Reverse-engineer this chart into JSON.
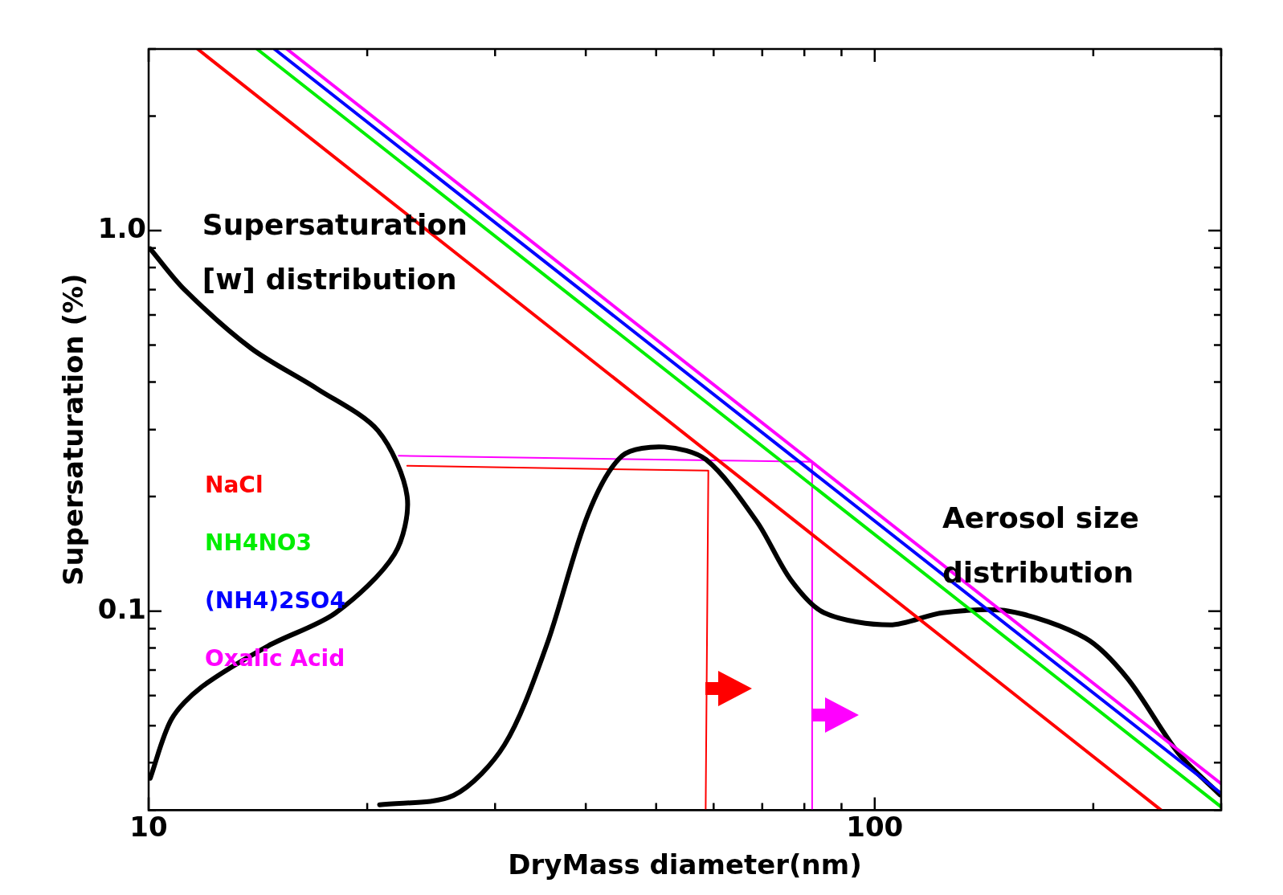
{
  "chart_data": {
    "type": "line",
    "xlabel": "DryMass diameter(nm)",
    "ylabel": "Supersaturation (%)",
    "log": "xy",
    "grid": false,
    "legend": "left",
    "marker": "none",
    "line_style": "solid",
    "xlim": [
      10,
      300
    ],
    "ylim": [
      0.03,
      3
    ],
    "xticks": [
      10,
      {
        "value": 20,
        "label": null
      },
      {
        "value": 30,
        "label": null
      },
      {
        "value": 40,
        "label": null
      },
      {
        "value": 50,
        "label": null
      },
      {
        "value": 60,
        "label": null
      },
      {
        "value": 70,
        "label": null
      },
      {
        "value": 80,
        "label": null
      },
      {
        "value": 90,
        "label": null
      },
      100,
      {
        "value": 200,
        "label": null
      },
      {
        "value": 300,
        "label": null
      }
    ],
    "yticks": [
      {
        "value": 0.03,
        "label": null
      },
      {
        "value": 0.04,
        "label": null
      },
      {
        "value": 0.05,
        "label": null
      },
      {
        "value": 0.06,
        "label": null
      },
      {
        "value": 0.07,
        "label": null
      },
      {
        "value": 0.08,
        "label": null
      },
      {
        "value": 0.09,
        "label": null
      },
      0.1,
      {
        "value": 0.2,
        "label": null
      },
      {
        "value": 0.3,
        "label": null
      },
      {
        "value": 0.4,
        "label": null
      },
      {
        "value": 0.5,
        "label": null
      },
      {
        "value": 0.6,
        "label": null
      },
      {
        "value": 0.7,
        "label": null
      },
      {
        "value": 0.8,
        "label": null
      },
      {
        "value": 0.9,
        "label": null
      },
      {
        "value": 1,
        "label": "1.0"
      },
      {
        "value": 2,
        "label": null
      },
      {
        "value": 3,
        "label": null
      }
    ],
    "annotations": [
      "Supersaturation [w] distribution",
      "Aerosol size distribution"
    ],
    "series": [
      {
        "name": "NaCl",
        "color": "#ff0000",
        "x": [
          11.68,
          248
        ],
        "values": [
          3,
          0.03
        ]
      },
      {
        "name": "NH4NO3",
        "color": "#00ee00",
        "x": [
          14.1,
          300
        ],
        "values": [
          3,
          0.0306
        ]
      },
      {
        "name": "(NH4)2SO4",
        "color": "#0000ff",
        "x": [
          14.9,
          300
        ],
        "values": [
          3,
          0.0332
        ]
      },
      {
        "name": "Oxalic Acid",
        "color": "#ff00ff",
        "x": [
          15.5,
          300
        ],
        "values": [
          3,
          0.0352
        ]
      },
      {
        "color": "#000000",
        "x": [
          10.05,
          11.2,
          13.85,
          17.1,
          20.7,
          22.7,
          21.8,
          18.1,
          14.6,
          11.8,
          10.75,
          10.05
        ],
        "values": [
          0.896,
          0.7,
          0.49,
          0.383,
          0.298,
          0.2,
          0.141,
          0.099,
          0.081,
          0.063,
          0.052,
          0.0364
        ]
      },
      {
        "color": "#000000",
        "x": [
          20.8,
          26.3,
          30.9,
          35.3,
          40.3,
          44.9,
          51.3,
          58.6,
          68.8,
          76.6,
          85.2,
          105,
          124,
          153,
          195,
          223,
          262,
          299
        ],
        "values": [
          0.031,
          0.0328,
          0.0445,
          0.081,
          0.18,
          0.256,
          0.27,
          0.25,
          0.172,
          0.121,
          0.099,
          0.092,
          0.099,
          0.1,
          0.085,
          0.0665,
          0.0423,
          0.0329
        ]
      },
      {
        "color": "#ff0000",
        "x": [
          22.7,
          59,
          58.5
        ],
        "values": [
          0.241,
          0.234,
          0.03
        ]
      },
      {
        "color": "#ff00ff",
        "x": [
          22.1,
          82,
          82
        ],
        "values": [
          0.256,
          0.247,
          0.03
        ]
      }
    ]
  }
}
